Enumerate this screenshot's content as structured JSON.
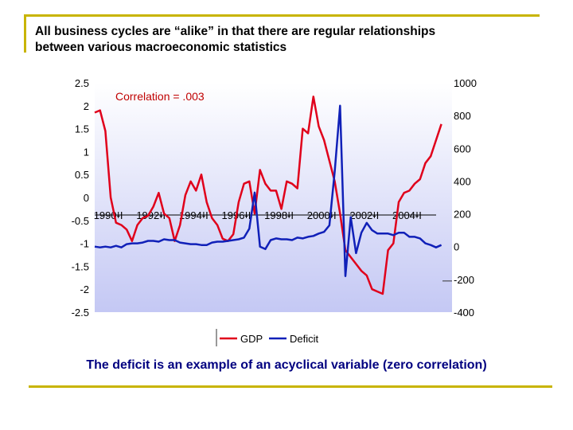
{
  "slide": {
    "title_line1": "All business cycles are “alike” in that there are regular relationships",
    "title_line2": "between various macroeconomic statistics",
    "caption": "The deficit is an example of an acyclical variable (zero correlation)"
  },
  "chart_data": {
    "type": "line",
    "annotation": "Correlation = .003",
    "left_axis": {
      "ticks": [
        "2.5",
        "2",
        "1.5",
        "1",
        "0.5",
        "0",
        "-0.5",
        "-1",
        "-1.5",
        "-2",
        "-2.5"
      ],
      "ylim": [
        -2.5,
        2.5
      ]
    },
    "right_axis": {
      "ticks": [
        "1000",
        "800",
        "600",
        "400",
        "200",
        "0",
        "-200",
        "-400"
      ],
      "ylim": [
        -400,
        1000
      ]
    },
    "x_tick_labels": [
      "1990-I",
      "1992-I",
      "1994-I",
      "1996-I",
      "1998-I",
      "2000-I",
      "2002-I",
      "2004-I"
    ],
    "x_start": 1989.75,
    "x_end": 2006.5,
    "x_ticks": [
      1990,
      1992,
      1994,
      1996,
      1998,
      2000,
      2002,
      2004
    ],
    "series": [
      {
        "name": "GDP",
        "axis": "left",
        "color": "#e0001b",
        "x": [
          1989.75,
          1990.0,
          1990.25,
          1990.5,
          1990.75,
          1991.0,
          1991.25,
          1991.5,
          1991.75,
          1992.0,
          1992.25,
          1992.5,
          1992.75,
          1993.0,
          1993.25,
          1993.5,
          1993.75,
          1994.0,
          1994.25,
          1994.5,
          1994.75,
          1995.0,
          1995.25,
          1995.5,
          1995.75,
          1996.0,
          1996.25,
          1996.5,
          1996.75,
          1997.0,
          1997.25,
          1997.5,
          1997.75,
          1998.0,
          1998.25,
          1998.5,
          1998.75,
          1999.0,
          1999.25,
          1999.5,
          1999.75,
          2000.0,
          2000.25,
          2000.5,
          2000.75,
          2001.0,
          2001.25,
          2001.5,
          2001.75,
          2002.0,
          2002.25,
          2002.5,
          2002.75,
          2003.0,
          2003.25,
          2003.5,
          2003.75,
          2004.0,
          2004.25,
          2004.5,
          2004.75,
          2005.0,
          2005.25,
          2005.5,
          2005.75,
          2006.0
        ],
        "values": [
          1.85,
          1.9,
          1.45,
          0.0,
          -0.55,
          -0.6,
          -0.7,
          -0.95,
          -0.6,
          -0.45,
          -0.4,
          -0.2,
          0.1,
          -0.35,
          -0.45,
          -0.95,
          -0.6,
          0.05,
          0.35,
          0.15,
          0.5,
          -0.1,
          -0.45,
          -0.6,
          -0.9,
          -0.95,
          -0.8,
          -0.1,
          0.3,
          0.35,
          -0.35,
          0.6,
          0.3,
          0.15,
          0.15,
          -0.25,
          0.35,
          0.3,
          0.2,
          1.5,
          1.4,
          2.2,
          1.55,
          1.25,
          0.8,
          0.35,
          -0.35,
          -1.15,
          -1.3,
          -1.45,
          -1.6,
          -1.7,
          -2.0,
          -2.05,
          -2.1,
          -1.15,
          -1.0,
          -0.1,
          0.1,
          0.15,
          0.3,
          0.4,
          0.75,
          0.9,
          1.25,
          1.6
        ]
      },
      {
        "name": "Deficit",
        "axis": "right",
        "color": "#1020b8",
        "x": [
          1989.75,
          1990.0,
          1990.25,
          1990.5,
          1990.75,
          1991.0,
          1991.25,
          1991.5,
          1991.75,
          1992.0,
          1992.25,
          1992.5,
          1992.75,
          1993.0,
          1993.25,
          1993.5,
          1993.75,
          1994.0,
          1994.25,
          1994.5,
          1994.75,
          1995.0,
          1995.25,
          1995.5,
          1995.75,
          1996.0,
          1996.25,
          1996.5,
          1996.75,
          1997.0,
          1997.25,
          1997.5,
          1997.75,
          1998.0,
          1998.25,
          1998.5,
          1998.75,
          1999.0,
          1999.25,
          1999.5,
          1999.75,
          2000.0,
          2000.25,
          2000.5,
          2000.75,
          2001.0,
          2001.25,
          2001.5,
          2001.75,
          2002.0,
          2002.25,
          2002.5,
          2002.75,
          2003.0,
          2003.25,
          2003.5,
          2003.75,
          2004.0,
          2004.25,
          2004.5,
          2004.75,
          2005.0,
          2005.25,
          2005.5,
          2005.75,
          2006.0
        ],
        "values": [
          0,
          -5,
          0,
          -5,
          5,
          -5,
          15,
          20,
          20,
          25,
          35,
          35,
          30,
          45,
          40,
          40,
          25,
          20,
          15,
          15,
          10,
          10,
          25,
          30,
          30,
          35,
          40,
          45,
          55,
          110,
          330,
          0,
          -15,
          40,
          50,
          45,
          45,
          40,
          55,
          50,
          60,
          65,
          80,
          90,
          130,
          460,
          860,
          -180,
          180,
          -40,
          85,
          145,
          100,
          80,
          80,
          80,
          70,
          85,
          85,
          60,
          60,
          50,
          20,
          10,
          -5,
          10
        ]
      }
    ],
    "legend": [
      "GDP",
      "Deficit"
    ],
    "legend_position": "bottom"
  }
}
